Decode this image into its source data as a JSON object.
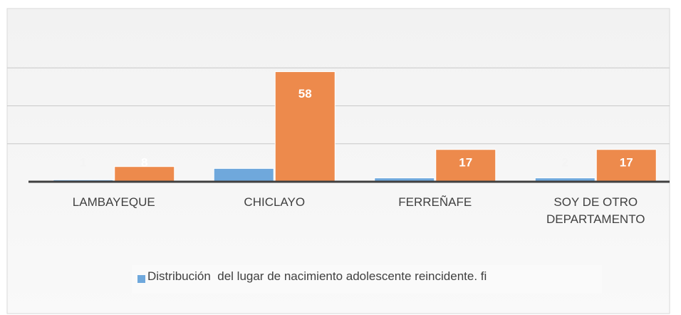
{
  "chart_data": {
    "type": "bar",
    "categories": [
      "LAMBAYEQUE",
      "CHICLAYO",
      "FERREÑAFE",
      "SOY DE OTRO DEPARTAMENTO"
    ],
    "series": [
      {
        "name": "Distribución  del lugar de nacimiento adolescente reincidente. fi",
        "color": "#6fa8dc",
        "values": [
          1,
          7,
          2,
          2
        ],
        "value_labels": [
          "1",
          null,
          null,
          "2"
        ]
      },
      {
        "color": "#ed8a4c",
        "values": [
          8,
          58,
          17,
          17
        ],
        "value_labels": [
          "8",
          "58",
          "17",
          "17"
        ]
      }
    ],
    "ylim": [
      0,
      80
    ],
    "yticks": [
      0,
      20,
      40,
      60
    ],
    "grid": true
  }
}
